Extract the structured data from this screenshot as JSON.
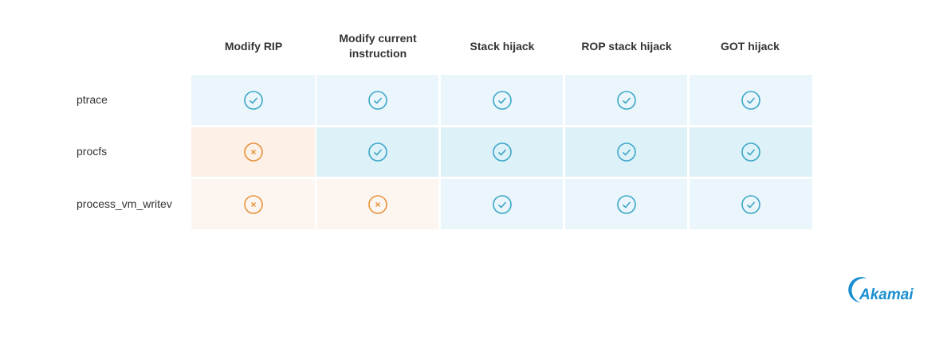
{
  "table": {
    "columns": [
      "Modify RIP",
      "Modify current instruction",
      "Stack hijack",
      "ROP stack hijack",
      "GOT hijack"
    ],
    "rows": [
      "ptrace",
      "procfs",
      "process_vm_writev"
    ]
  },
  "logo": "Akamai"
}
